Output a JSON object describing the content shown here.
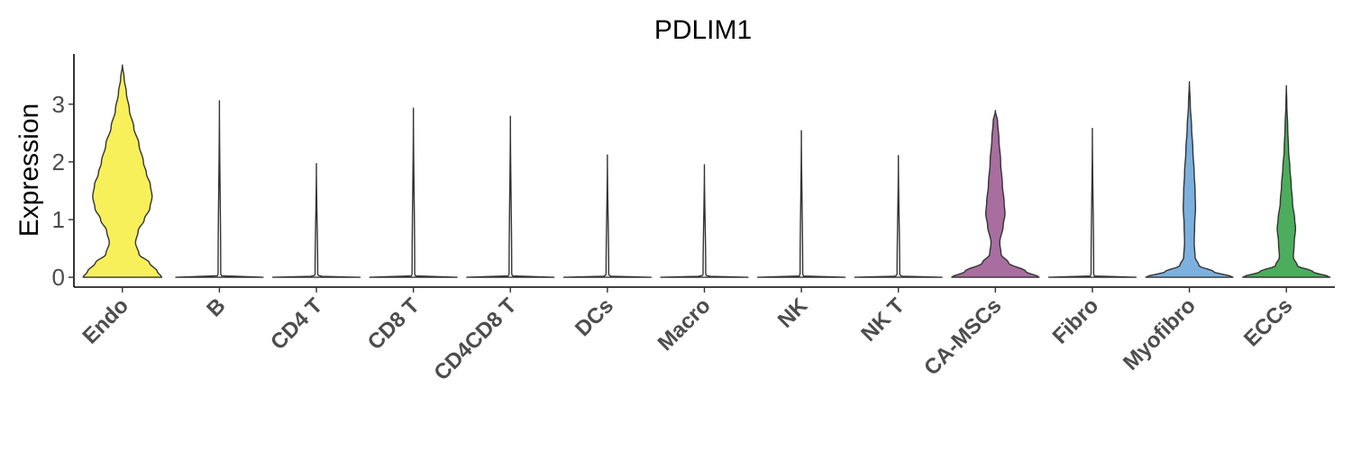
{
  "chart_data": {
    "type": "violin",
    "title": "PDLIM1",
    "ylabel": "Expression",
    "xlabel": "",
    "ylim": [
      -0.17,
      3.87
    ],
    "yticks": [
      0,
      1,
      2,
      3
    ],
    "legend": "none",
    "grid": false,
    "categories": [
      "Endo",
      "B",
      "CD4 T",
      "CD8 T",
      "CD4CD8 T",
      "DCs",
      "Macro",
      "NK",
      "NK T",
      "CA-MSCs",
      "Fibro",
      "Myofibro",
      "ECCs"
    ],
    "colors": [
      "#F8F05A",
      "#FFFFFF",
      "#FFFFFF",
      "#FFFFFF",
      "#FFFFFF",
      "#FFFFFF",
      "#FFFFFF",
      "#FFFFFF",
      "#FFFFFF",
      "#A86E9F",
      "#FFFFFF",
      "#7CB0DE",
      "#4CAE5C"
    ],
    "max_values": [
      3.68,
      3.06,
      1.97,
      2.93,
      2.79,
      2.12,
      1.95,
      2.54,
      2.11,
      2.89,
      2.58,
      3.39,
      3.32
    ],
    "density_profiles": [
      [
        [
          0,
          0.9
        ],
        [
          0.1,
          0.8
        ],
        [
          0.25,
          0.62
        ],
        [
          0.4,
          0.38
        ],
        [
          0.6,
          0.3
        ],
        [
          0.8,
          0.36
        ],
        [
          1.0,
          0.5
        ],
        [
          1.2,
          0.63
        ],
        [
          1.4,
          0.68
        ],
        [
          1.6,
          0.64
        ],
        [
          1.8,
          0.55
        ],
        [
          2.0,
          0.48
        ],
        [
          2.3,
          0.38
        ],
        [
          2.6,
          0.26
        ],
        [
          2.9,
          0.16
        ],
        [
          3.2,
          0.09
        ],
        [
          3.45,
          0.04
        ],
        [
          3.68,
          0
        ]
      ],
      [
        [
          0,
          1
        ],
        [
          0.02,
          0.05
        ],
        [
          0.06,
          0.03
        ],
        [
          3.06,
          0
        ]
      ],
      [
        [
          0,
          1
        ],
        [
          0.02,
          0.05
        ],
        [
          0.06,
          0.03
        ],
        [
          1.97,
          0
        ]
      ],
      [
        [
          0,
          1
        ],
        [
          0.02,
          0.05
        ],
        [
          0.06,
          0.03
        ],
        [
          2.93,
          0
        ]
      ],
      [
        [
          0,
          1
        ],
        [
          0.02,
          0.05
        ],
        [
          0.06,
          0.03
        ],
        [
          2.79,
          0
        ]
      ],
      [
        [
          0,
          1
        ],
        [
          0.02,
          0.05
        ],
        [
          0.06,
          0.03
        ],
        [
          2.12,
          0
        ]
      ],
      [
        [
          0,
          1
        ],
        [
          0.02,
          0.05
        ],
        [
          0.06,
          0.03
        ],
        [
          1.95,
          0
        ]
      ],
      [
        [
          0,
          1
        ],
        [
          0.02,
          0.05
        ],
        [
          0.06,
          0.03
        ],
        [
          2.54,
          0
        ]
      ],
      [
        [
          0,
          1
        ],
        [
          0.02,
          0.05
        ],
        [
          0.06,
          0.03
        ],
        [
          2.11,
          0
        ]
      ],
      [
        [
          0,
          1.0
        ],
        [
          0.1,
          0.7
        ],
        [
          0.25,
          0.3
        ],
        [
          0.4,
          0.13
        ],
        [
          0.6,
          0.1
        ],
        [
          0.9,
          0.18
        ],
        [
          1.1,
          0.22
        ],
        [
          1.3,
          0.2
        ],
        [
          1.6,
          0.16
        ],
        [
          2.0,
          0.12
        ],
        [
          2.4,
          0.08
        ],
        [
          2.7,
          0.05
        ],
        [
          2.89,
          0
        ]
      ],
      [
        [
          0,
          1
        ],
        [
          0.02,
          0.05
        ],
        [
          0.06,
          0.03
        ],
        [
          2.58,
          0
        ]
      ],
      [
        [
          0,
          1.0
        ],
        [
          0.1,
          0.55
        ],
        [
          0.2,
          0.22
        ],
        [
          0.35,
          0.13
        ],
        [
          0.6,
          0.11
        ],
        [
          0.9,
          0.12
        ],
        [
          1.2,
          0.14
        ],
        [
          1.5,
          0.13
        ],
        [
          1.8,
          0.11
        ],
        [
          2.2,
          0.08
        ],
        [
          2.6,
          0.05
        ],
        [
          3.0,
          0.02
        ],
        [
          3.39,
          0
        ]
      ],
      [
        [
          0,
          1.0
        ],
        [
          0.1,
          0.6
        ],
        [
          0.2,
          0.25
        ],
        [
          0.35,
          0.16
        ],
        [
          0.6,
          0.18
        ],
        [
          0.85,
          0.21
        ],
        [
          1.0,
          0.19
        ],
        [
          1.3,
          0.14
        ],
        [
          1.6,
          0.11
        ],
        [
          1.9,
          0.08
        ],
        [
          2.2,
          0.05
        ],
        [
          2.6,
          0.03
        ],
        [
          3.0,
          0.01
        ],
        [
          3.32,
          0
        ]
      ]
    ]
  }
}
